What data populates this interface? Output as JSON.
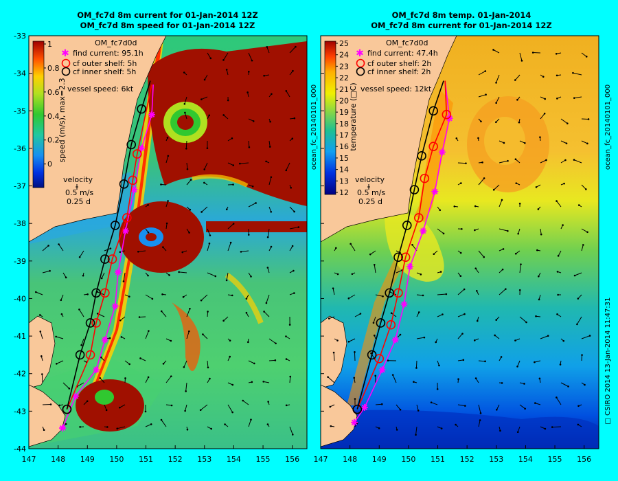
{
  "colors": {
    "background": "#00ffff",
    "land": "#f9c89a",
    "eddy": "#a01000",
    "find_current_track": "#ff00ff",
    "outer_shelf_track": "#ff0000",
    "inner_shelf_track": "#000000"
  },
  "left_panel": {
    "title_line1": "OM_fc7d 8m current for 01-Jan-2014 12Z",
    "title_line2": "OM_fc7d 8m speed for 01-Jan-2014 12Z",
    "legend_header": "OM_fc7d0d",
    "legend_items": [
      {
        "label": "find current: 95.1h",
        "marker": "asterisk",
        "color": "#ff00ff"
      },
      {
        "label": "cf outer shelf: 5h",
        "marker": "circle",
        "color": "#ff0000"
      },
      {
        "label": "cf inner shelf: 5h",
        "marker": "circle",
        "color": "#000000"
      }
    ],
    "vessel_speed": "vessel speed: 6kt",
    "colorbar_label": "speed (m/s), max=2.3",
    "colorbar_ticks": [
      "1",
      "0.8",
      "0.6",
      "0.4",
      "0.2",
      "0"
    ],
    "velocity_label": "velocity",
    "velocity_scale": "0.5 m/s",
    "velocity_time": "0.25 d"
  },
  "right_panel": {
    "title_line1": "OM_fc7d 8m temp. 01-Jan-2014",
    "title_line2": "OM_fc7d 8m current for 01-Jan-2014 12Z",
    "legend_header": "OM_fc7d0d",
    "legend_items": [
      {
        "label": "find current: 47.4h",
        "marker": "asterisk",
        "color": "#ff00ff"
      },
      {
        "label": "cf outer shelf: 2h",
        "marker": "circle",
        "color": "#ff0000"
      },
      {
        "label": "cf inner shelf: 2h",
        "marker": "circle",
        "color": "#000000"
      }
    ],
    "vessel_speed": "vessel speed: 12kt",
    "colorbar_label": "temperature (□C)",
    "colorbar_ticks": [
      "25",
      "24",
      "23",
      "22",
      "21",
      "20",
      "19",
      "18",
      "17",
      "16",
      "15",
      "14",
      "13",
      "12"
    ],
    "velocity_label": "velocity",
    "velocity_scale": "0.5 m/s",
    "velocity_time": "0.25 d"
  },
  "axes": {
    "x_ticks": [
      "147",
      "148",
      "149",
      "150",
      "151",
      "152",
      "153",
      "154",
      "155",
      "156"
    ],
    "y_ticks": [
      "-33",
      "-34",
      "-35",
      "-36",
      "-37",
      "-38",
      "-39",
      "-40",
      "-41",
      "-42",
      "-43",
      "-44"
    ],
    "xlim": [
      147,
      156.5
    ],
    "ylim": [
      -44,
      -33
    ]
  },
  "side_labels": {
    "left_gap": "ocean_fc_20140101_000",
    "right_top": "ocean_fc_20140101_000",
    "right_bottom": "□ CSIRO 2014   13-Jan-2014 11:47:31"
  },
  "tracks": {
    "left": {
      "find_current": [
        [
          148.15,
          -43.45
        ],
        [
          148.6,
          -42.6
        ],
        [
          149.3,
          -41.9
        ],
        [
          149.6,
          -41.1
        ],
        [
          149.95,
          -40.2
        ],
        [
          150.05,
          -39.3
        ],
        [
          150.3,
          -38.2
        ],
        [
          150.6,
          -37.1
        ],
        [
          150.85,
          -36.0
        ],
        [
          151.2,
          -35.1
        ],
        [
          151.25,
          -34.3
        ]
      ],
      "outer_shelf": [
        [
          148.3,
          -42.95
        ],
        [
          149.1,
          -41.5
        ],
        [
          149.3,
          -40.65
        ],
        [
          149.6,
          -39.85
        ],
        [
          149.85,
          -38.95
        ],
        [
          150.35,
          -37.85
        ],
        [
          150.55,
          -36.85
        ],
        [
          150.7,
          -36.15
        ],
        [
          151.2,
          -34.3
        ]
      ],
      "inner_shelf": [
        [
          148.3,
          -42.95
        ],
        [
          148.75,
          -41.5
        ],
        [
          149.1,
          -40.65
        ],
        [
          149.3,
          -39.85
        ],
        [
          149.6,
          -38.95
        ],
        [
          149.95,
          -38.05
        ],
        [
          150.25,
          -36.95
        ],
        [
          150.5,
          -35.9
        ],
        [
          150.85,
          -34.95
        ],
        [
          151.15,
          -34.2
        ]
      ]
    },
    "right": {
      "find_current": [
        [
          148.15,
          -43.3
        ],
        [
          148.5,
          -42.9
        ],
        [
          149.1,
          -41.9
        ],
        [
          149.55,
          -41.1
        ],
        [
          149.85,
          -40.15
        ],
        [
          150.05,
          -39.15
        ],
        [
          150.5,
          -38.2
        ],
        [
          150.9,
          -37.15
        ],
        [
          151.15,
          -36.1
        ],
        [
          151.4,
          -35.2
        ],
        [
          151.25,
          -34.2
        ]
      ],
      "outer_shelf": [
        [
          148.25,
          -42.95
        ],
        [
          149.0,
          -41.6
        ],
        [
          149.4,
          -40.7
        ],
        [
          149.65,
          -39.85
        ],
        [
          149.9,
          -38.9
        ],
        [
          150.35,
          -37.85
        ],
        [
          150.55,
          -36.8
        ],
        [
          150.85,
          -35.95
        ],
        [
          151.3,
          -35.1
        ],
        [
          151.25,
          -34.2
        ]
      ],
      "inner_shelf": [
        [
          148.25,
          -42.95
        ],
        [
          148.75,
          -41.5
        ],
        [
          149.05,
          -40.65
        ],
        [
          149.35,
          -39.85
        ],
        [
          149.65,
          -38.9
        ],
        [
          149.95,
          -38.05
        ],
        [
          150.2,
          -37.1
        ],
        [
          150.45,
          -36.2
        ],
        [
          150.85,
          -35.0
        ],
        [
          151.2,
          -34.2
        ]
      ]
    }
  }
}
